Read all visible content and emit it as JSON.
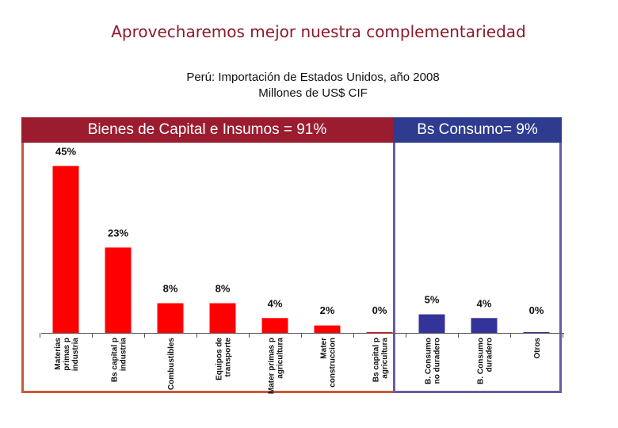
{
  "slide": {
    "title": "Aprovecharemos mejor nuestra complementariedad"
  },
  "chart_data": {
    "type": "bar",
    "title": "Perú: Importación de Estados Unidos, año 2008",
    "subtitle": "Millones de US$  CIF",
    "groups": [
      {
        "label": "Bienes de Capital e Insumos = 91%",
        "color": "#9b1c2e",
        "category_count": 7
      },
      {
        "label": "Bs Consumo= 9%",
        "color": "#2e3b8e",
        "category_count": 3
      }
    ],
    "categories": [
      [
        "Materias",
        "primas p",
        "industria"
      ],
      [
        "Bs capital p",
        "industria"
      ],
      [
        "Combustibles"
      ],
      [
        "Equipos de",
        "transporte"
      ],
      [
        "Mater primas p",
        "agricultura"
      ],
      [
        "Mater",
        "construccion"
      ],
      [
        "Bs capital p",
        "agricultura"
      ],
      [
        "B. Consumo",
        "no duradero"
      ],
      [
        "B. Consumo",
        "duradero"
      ],
      [
        "Otros"
      ]
    ],
    "values": [
      45,
      23,
      8,
      8,
      4,
      2,
      0.2,
      5,
      4,
      0.2
    ],
    "value_labels": [
      "45%",
      "23%",
      "8%",
      "8%",
      "4%",
      "2%",
      "0%",
      "5%",
      "4%",
      "0%"
    ],
    "bar_colors": [
      "#ff0000",
      "#ff0000",
      "#ff0000",
      "#ff0000",
      "#ff0000",
      "#ff0000",
      "#ff0000",
      "#333399",
      "#333399",
      "#333399"
    ],
    "ylim": [
      0,
      47
    ],
    "grid": false,
    "legend": "none"
  }
}
